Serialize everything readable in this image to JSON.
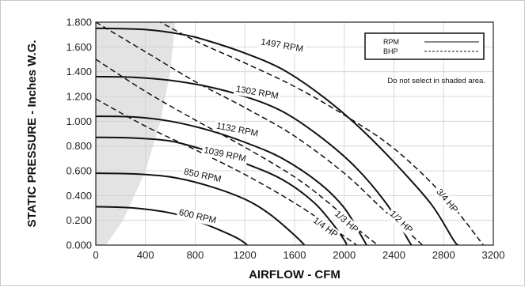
{
  "chart_data": {
    "type": "line",
    "title": "",
    "xlabel": "AIRFLOW - CFM",
    "ylabel": "STATIC PRESSURE - Inches W.G.",
    "xlim": [
      0,
      3200
    ],
    "ylim": [
      0,
      1.8
    ],
    "x_ticks": [
      "0",
      "400",
      "800",
      "1200",
      "1600",
      "2000",
      "2400",
      "2800",
      "3200"
    ],
    "y_ticks": [
      "0.000",
      "0.200",
      "0.400",
      "0.600",
      "0.800",
      "1.000",
      "1.200",
      "1.400",
      "1.600",
      "1.800"
    ],
    "grid": true,
    "legend": {
      "placement": "top-right",
      "entries": [
        {
          "label": "RPM",
          "style": "solid"
        },
        {
          "label": "BHP",
          "style": "dashed"
        }
      ]
    },
    "note": "Do not select in shaded area.",
    "shaded_region": {
      "description_boundary": [
        [
          0,
          0
        ],
        [
          80,
          0
        ],
        [
          220,
          0.2
        ],
        [
          400,
          0.6
        ],
        [
          520,
          1.0
        ],
        [
          600,
          1.4
        ],
        [
          640,
          1.8
        ],
        [
          0,
          1.8
        ]
      ]
    },
    "rpm_series": [
      {
        "name": "1497 RPM",
        "points": [
          [
            0,
            1.75
          ],
          [
            400,
            1.74
          ],
          [
            700,
            1.7
          ],
          [
            900,
            1.65
          ],
          [
            1200,
            1.55
          ],
          [
            1500,
            1.42
          ],
          [
            1800,
            1.22
          ],
          [
            2100,
            0.97
          ],
          [
            2400,
            0.67
          ],
          [
            2700,
            0.33
          ],
          [
            2880,
            0.04
          ],
          [
            2920,
            0.0
          ]
        ],
        "label_at": [
          1500,
          1.615
        ]
      },
      {
        "name": "1302 RPM",
        "points": [
          [
            0,
            1.36
          ],
          [
            300,
            1.355
          ],
          [
            600,
            1.33
          ],
          [
            900,
            1.28
          ],
          [
            1200,
            1.2
          ],
          [
            1500,
            1.08
          ],
          [
            1800,
            0.88
          ],
          [
            2100,
            0.62
          ],
          [
            2350,
            0.32
          ],
          [
            2510,
            0.05
          ],
          [
            2540,
            0.0
          ]
        ],
        "label_at": [
          1300,
          1.235
        ]
      },
      {
        "name": "1132 RPM",
        "points": [
          [
            0,
            1.04
          ],
          [
            300,
            1.035
          ],
          [
            600,
            1.0
          ],
          [
            900,
            0.93
          ],
          [
            1200,
            0.83
          ],
          [
            1500,
            0.7
          ],
          [
            1800,
            0.5
          ],
          [
            2000,
            0.3
          ],
          [
            2140,
            0.07
          ],
          [
            2180,
            0.0
          ]
        ],
        "label_at": [
          1140,
          0.935
        ]
      },
      {
        "name": "1039 RPM",
        "points": [
          [
            0,
            0.87
          ],
          [
            300,
            0.865
          ],
          [
            600,
            0.84
          ],
          [
            900,
            0.76
          ],
          [
            1200,
            0.66
          ],
          [
            1500,
            0.53
          ],
          [
            1750,
            0.35
          ],
          [
            1900,
            0.18
          ],
          [
            2000,
            0.04
          ],
          [
            2020,
            0.0
          ]
        ],
        "label_at": [
          1040,
          0.735
        ]
      },
      {
        "name": "850 RPM",
        "points": [
          [
            0,
            0.58
          ],
          [
            300,
            0.575
          ],
          [
            600,
            0.55
          ],
          [
            900,
            0.48
          ],
          [
            1200,
            0.37
          ],
          [
            1400,
            0.25
          ],
          [
            1600,
            0.08
          ],
          [
            1680,
            0.0
          ]
        ],
        "label_at": [
          860,
          0.565
        ]
      },
      {
        "name": "600 RPM",
        "points": [
          [
            0,
            0.31
          ],
          [
            300,
            0.3
          ],
          [
            600,
            0.26
          ],
          [
            800,
            0.2
          ],
          [
            1000,
            0.12
          ],
          [
            1150,
            0.05
          ],
          [
            1220,
            0.0
          ]
        ],
        "label_at": [
          820,
          0.235
        ]
      }
    ],
    "bhp_series": [
      {
        "name": "3/4 HP",
        "points": [
          [
            430,
            1.85
          ],
          [
            800,
            1.65
          ],
          [
            1200,
            1.47
          ],
          [
            1600,
            1.28
          ],
          [
            2000,
            1.05
          ],
          [
            2400,
            0.78
          ],
          [
            2800,
            0.4
          ],
          [
            3120,
            0.0
          ]
        ],
        "label_at": [
          2830,
          0.36
        ]
      },
      {
        "name": "1/2 HP",
        "points": [
          [
            0,
            1.8
          ],
          [
            400,
            1.56
          ],
          [
            800,
            1.32
          ],
          [
            1200,
            1.11
          ],
          [
            1600,
            0.88
          ],
          [
            2000,
            0.58
          ],
          [
            2300,
            0.3
          ],
          [
            2630,
            0.0
          ]
        ],
        "label_at": [
          2460,
          0.19
        ]
      },
      {
        "name": "1/3 HP",
        "points": [
          [
            0,
            1.5
          ],
          [
            400,
            1.24
          ],
          [
            800,
            1.01
          ],
          [
            1200,
            0.79
          ],
          [
            1600,
            0.55
          ],
          [
            1900,
            0.32
          ],
          [
            2120,
            0.12
          ],
          [
            2270,
            0.0
          ]
        ],
        "label_at": [
          2020,
          0.19
        ]
      },
      {
        "name": "1/4 HP",
        "points": [
          [
            0,
            1.18
          ],
          [
            400,
            0.96
          ],
          [
            800,
            0.77
          ],
          [
            1200,
            0.57
          ],
          [
            1600,
            0.34
          ],
          [
            1900,
            0.14
          ],
          [
            2100,
            0.0
          ]
        ],
        "label_at": [
          1850,
          0.145
        ]
      }
    ]
  }
}
